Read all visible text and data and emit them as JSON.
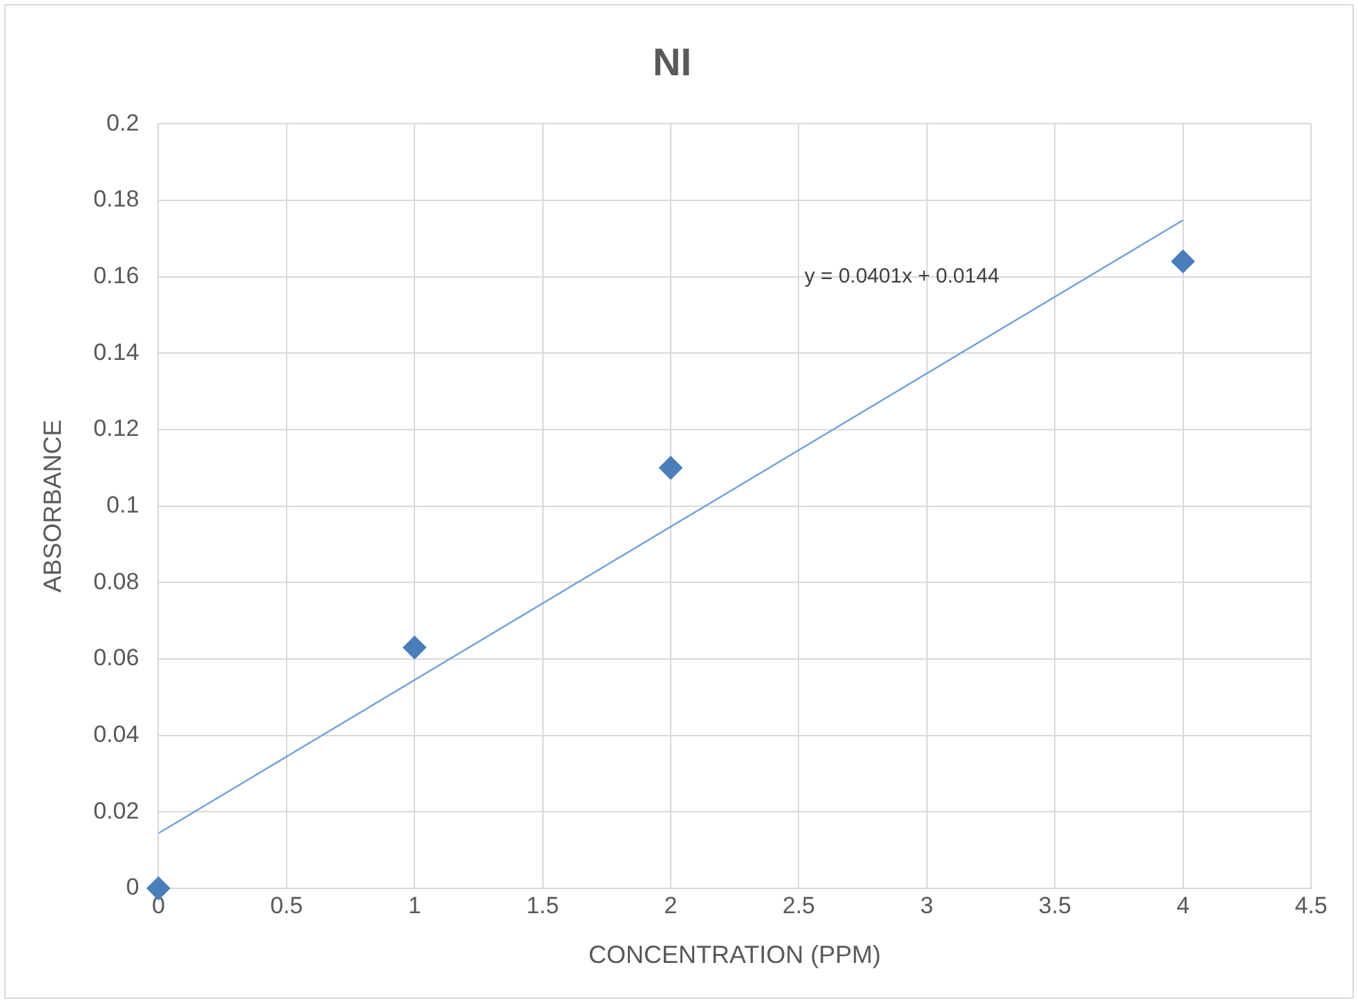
{
  "chart_data": {
    "type": "scatter",
    "title": "NI",
    "xlabel": "CONCENTRATION (PPM)",
    "ylabel": "ABSORBANCE",
    "series": [
      {
        "color": "#4a7ebb",
        "marker": "diamond",
        "x": [
          0,
          1,
          2,
          4
        ],
        "values": [
          0,
          0.063,
          0.11,
          0.164
        ]
      },
      {
        "type": "line",
        "color": "#6f9fd8",
        "x": [
          0,
          4
        ],
        "values": [
          0.0144,
          0.1748
        ]
      }
    ],
    "xlim": [
      0,
      4.5
    ],
    "xticks": [
      0,
      0.5,
      1,
      1.5,
      2,
      2.5,
      3,
      3.5,
      4,
      4.5
    ],
    "ylim": [
      0,
      0.2
    ],
    "yticks": [
      0,
      0.02,
      0.04,
      0.06,
      0.08,
      0.1,
      0.12,
      0.14,
      0.16,
      0.18,
      0.2
    ],
    "grid": true,
    "legend": false,
    "annotations": [
      "y = 0.0401x + 0.0144"
    ]
  }
}
